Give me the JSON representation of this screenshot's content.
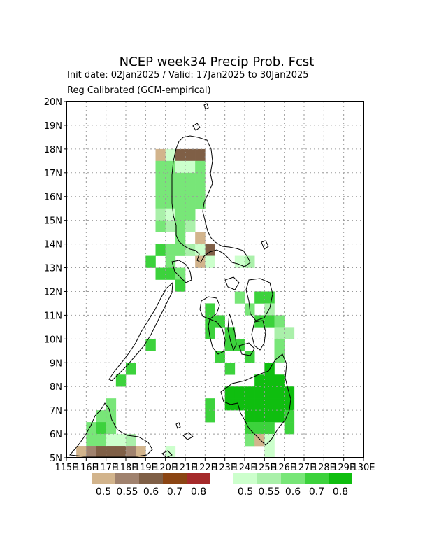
{
  "title": "NCEP week34 Precip Prob. Fcst",
  "subtitle_line1": "Init date: 02Jan2025 / Valid: 17Jan2025 to 30Jan2025",
  "subtitle_line2": "Reg Calibrated (GCM-empirical)",
  "map": {
    "lon_range": [
      115,
      130
    ],
    "lat_range": [
      5,
      20
    ],
    "lon_ticks": [
      "115E",
      "116E",
      "117E",
      "118E",
      "119E",
      "120E",
      "121E",
      "122E",
      "123E",
      "124E",
      "125E",
      "126E",
      "127E",
      "128E",
      "129E",
      "130E"
    ],
    "lat_ticks": [
      "5N",
      "6N",
      "7N",
      "8N",
      "9N",
      "10N",
      "11N",
      "12N",
      "13N",
      "14N",
      "15N",
      "16N",
      "17N",
      "18N",
      "19N",
      "20N"
    ],
    "grid_step_deg": 0.5,
    "grid_dotted": true
  },
  "legend": {
    "dry": {
      "labels": [
        "0.5",
        "0.55",
        "0.6",
        "0.7",
        "0.8"
      ],
      "colors": [
        "#d2b48c",
        "#a0826e",
        "#7f5f46",
        "#8b4513",
        "#a52a2a"
      ]
    },
    "wet": {
      "labels": [
        "0.5",
        "0.55",
        "0.6",
        "0.7",
        "0.8"
      ],
      "colors": [
        "#ccffcc",
        "#aaf0aa",
        "#78e678",
        "#3cd23c",
        "#0fbe0f"
      ]
    }
  },
  "prob_cells": [
    {
      "lon": 19.75,
      "lat": 17.75,
      "v": "d1"
    },
    {
      "lon": 20.25,
      "lat": 17.75,
      "v": "w1"
    },
    {
      "lon": 20.75,
      "lat": 17.75,
      "v": "d3"
    },
    {
      "lon": 21.25,
      "lat": 17.75,
      "v": "d3"
    },
    {
      "lon": 21.75,
      "lat": 17.75,
      "v": "d3"
    },
    {
      "lon": 19.75,
      "lat": 17.25,
      "v": "w3"
    },
    {
      "lon": 20.25,
      "lat": 17.25,
      "v": "w3"
    },
    {
      "lon": 20.75,
      "lat": 17.25,
      "v": "w1"
    },
    {
      "lon": 21.25,
      "lat": 17.25,
      "v": "w1"
    },
    {
      "lon": 21.75,
      "lat": 17.25,
      "v": "w3"
    },
    {
      "lon": 19.75,
      "lat": 16.75,
      "v": "w3"
    },
    {
      "lon": 20.25,
      "lat": 16.75,
      "v": "w3"
    },
    {
      "lon": 20.75,
      "lat": 16.75,
      "v": "w3"
    },
    {
      "lon": 21.25,
      "lat": 16.75,
      "v": "w3"
    },
    {
      "lon": 21.75,
      "lat": 16.75,
      "v": "w3"
    },
    {
      "lon": 19.75,
      "lat": 16.25,
      "v": "w3"
    },
    {
      "lon": 20.25,
      "lat": 16.25,
      "v": "w3"
    },
    {
      "lon": 20.75,
      "lat": 16.25,
      "v": "w3"
    },
    {
      "lon": 21.25,
      "lat": 16.25,
      "v": "w3"
    },
    {
      "lon": 21.75,
      "lat": 16.25,
      "v": "w3"
    },
    {
      "lon": 19.75,
      "lat": 15.75,
      "v": "w3"
    },
    {
      "lon": 20.25,
      "lat": 15.75,
      "v": "w3"
    },
    {
      "lon": 20.75,
      "lat": 15.75,
      "v": "w3"
    },
    {
      "lon": 21.25,
      "lat": 15.75,
      "v": "w3"
    },
    {
      "lon": 21.75,
      "lat": 15.75,
      "v": "w3"
    },
    {
      "lon": 19.75,
      "lat": 15.25,
      "v": "w2"
    },
    {
      "lon": 20.25,
      "lat": 15.25,
      "v": "w1"
    },
    {
      "lon": 20.75,
      "lat": 15.25,
      "v": "w3"
    },
    {
      "lon": 21.25,
      "lat": 15.25,
      "v": "w3"
    },
    {
      "lon": 19.75,
      "lat": 14.75,
      "v": "w3"
    },
    {
      "lon": 20.25,
      "lat": 14.75,
      "v": "w2"
    },
    {
      "lon": 20.75,
      "lat": 14.75,
      "v": "w3"
    },
    {
      "lon": 21.25,
      "lat": 14.75,
      "v": "w2"
    },
    {
      "lon": 20.75,
      "lat": 14.25,
      "v": "w3"
    },
    {
      "lon": 21.75,
      "lat": 14.25,
      "v": "d1"
    },
    {
      "lon": 19.75,
      "lat": 13.75,
      "v": "w4"
    },
    {
      "lon": 20.25,
      "lat": 13.75,
      "v": "w3"
    },
    {
      "lon": 20.75,
      "lat": 13.75,
      "v": "w3"
    },
    {
      "lon": 21.25,
      "lat": 13.75,
      "v": "w2"
    },
    {
      "lon": 22.25,
      "lat": 13.75,
      "v": "d3"
    },
    {
      "lon": 21.75,
      "lat": 13.75,
      "v": "w1"
    },
    {
      "lon": 19.25,
      "lat": 13.25,
      "v": "w4"
    },
    {
      "lon": 20.25,
      "lat": 13.25,
      "v": "w3"
    },
    {
      "lon": 21.75,
      "lat": 13.25,
      "v": "d1"
    },
    {
      "lon": 22.25,
      "lat": 13.25,
      "v": "w1"
    },
    {
      "lon": 23.75,
      "lat": 13.25,
      "v": "w1"
    },
    {
      "lon": 24.25,
      "lat": 13.25,
      "v": "w2"
    },
    {
      "lon": 19.75,
      "lat": 12.75,
      "v": "w4"
    },
    {
      "lon": 20.25,
      "lat": 12.75,
      "v": "w4"
    },
    {
      "lon": 20.75,
      "lat": 12.75,
      "v": "w3"
    },
    {
      "lon": 20.75,
      "lat": 12.25,
      "v": "w4"
    },
    {
      "lon": 23.75,
      "lat": 11.75,
      "v": "w3"
    },
    {
      "lon": 24.75,
      "lat": 11.75,
      "v": "w4"
    },
    {
      "lon": 25.25,
      "lat": 11.75,
      "v": "w4"
    },
    {
      "lon": 22.25,
      "lat": 11.25,
      "v": "w4"
    },
    {
      "lon": 24.25,
      "lat": 11.25,
      "v": "w3"
    },
    {
      "lon": 25.25,
      "lat": 11.25,
      "v": "w2"
    },
    {
      "lon": 22.25,
      "lat": 10.75,
      "v": "w4"
    },
    {
      "lon": 22.75,
      "lat": 10.75,
      "v": "w4"
    },
    {
      "lon": 24.75,
      "lat": 10.75,
      "v": "w4"
    },
    {
      "lon": 25.25,
      "lat": 10.75,
      "v": "w4"
    },
    {
      "lon": 25.75,
      "lat": 10.75,
      "v": "w3"
    },
    {
      "lon": 22.25,
      "lat": 10.25,
      "v": "w4"
    },
    {
      "lon": 23.25,
      "lat": 10.25,
      "v": "w4"
    },
    {
      "lon": 25.75,
      "lat": 10.25,
      "v": "w2"
    },
    {
      "lon": 26.25,
      "lat": 10.25,
      "v": "w2"
    },
    {
      "lon": 19.25,
      "lat": 9.75,
      "v": "w4"
    },
    {
      "lon": 23.25,
      "lat": 9.75,
      "v": "w4"
    },
    {
      "lon": 23.75,
      "lat": 9.75,
      "v": "w4"
    },
    {
      "lon": 25.75,
      "lat": 9.75,
      "v": "w3"
    },
    {
      "lon": 22.75,
      "lat": 9.25,
      "v": "w4"
    },
    {
      "lon": 24.25,
      "lat": 9.25,
      "v": "w4"
    },
    {
      "lon": 25.75,
      "lat": 9.25,
      "v": "w3"
    },
    {
      "lon": 18.25,
      "lat": 8.75,
      "v": "w4"
    },
    {
      "lon": 23.25,
      "lat": 8.75,
      "v": "w4"
    },
    {
      "lon": 25.25,
      "lat": 8.75,
      "v": "w5"
    },
    {
      "lon": 17.75,
      "lat": 8.25,
      "v": "w4"
    },
    {
      "lon": 24.75,
      "lat": 8.25,
      "v": "w5"
    },
    {
      "lon": 25.25,
      "lat": 8.25,
      "v": "w5"
    },
    {
      "lon": 25.75,
      "lat": 8.25,
      "v": "w5"
    },
    {
      "lon": 23.25,
      "lat": 7.75,
      "v": "w5"
    },
    {
      "lon": 23.75,
      "lat": 7.75,
      "v": "w5"
    },
    {
      "lon": 24.25,
      "lat": 7.75,
      "v": "w5"
    },
    {
      "lon": 24.75,
      "lat": 7.75,
      "v": "w5"
    },
    {
      "lon": 25.25,
      "lat": 7.75,
      "v": "w5"
    },
    {
      "lon": 25.75,
      "lat": 7.75,
      "v": "w5"
    },
    {
      "lon": 26.25,
      "lat": 7.75,
      "v": "w5"
    },
    {
      "lon": 22.25,
      "lat": 7.25,
      "v": "w4"
    },
    {
      "lon": 23.25,
      "lat": 7.25,
      "v": "w5"
    },
    {
      "lon": 23.75,
      "lat": 7.25,
      "v": "w5"
    },
    {
      "lon": 24.25,
      "lat": 7.25,
      "v": "w5"
    },
    {
      "lon": 24.75,
      "lat": 7.25,
      "v": "w5"
    },
    {
      "lon": 25.25,
      "lat": 7.25,
      "v": "w5"
    },
    {
      "lon": 25.75,
      "lat": 7.25,
      "v": "w5"
    },
    {
      "lon": 26.25,
      "lat": 7.25,
      "v": "w5"
    },
    {
      "lon": 17.25,
      "lat": 7.25,
      "v": "w3"
    },
    {
      "lon": 22.25,
      "lat": 6.75,
      "v": "w4"
    },
    {
      "lon": 24.25,
      "lat": 6.75,
      "v": "w5"
    },
    {
      "lon": 24.75,
      "lat": 6.75,
      "v": "w5"
    },
    {
      "lon": 25.25,
      "lat": 6.75,
      "v": "w5"
    },
    {
      "lon": 25.75,
      "lat": 6.75,
      "v": "w5"
    },
    {
      "lon": 26.25,
      "lat": 6.75,
      "v": "w4"
    },
    {
      "lon": 16.75,
      "lat": 6.75,
      "v": "w3"
    },
    {
      "lon": 17.25,
      "lat": 6.75,
      "v": "w3"
    },
    {
      "lon": 16.25,
      "lat": 6.25,
      "v": "w3"
    },
    {
      "lon": 16.75,
      "lat": 6.25,
      "v": "w4"
    },
    {
      "lon": 17.25,
      "lat": 6.25,
      "v": "w3"
    },
    {
      "lon": 24.25,
      "lat": 6.25,
      "v": "w4"
    },
    {
      "lon": 24.75,
      "lat": 6.25,
      "v": "w4"
    },
    {
      "lon": 25.25,
      "lat": 6.25,
      "v": "w4"
    },
    {
      "lon": 26.25,
      "lat": 6.25,
      "v": "w4"
    },
    {
      "lon": 16.25,
      "lat": 5.75,
      "v": "w3"
    },
    {
      "lon": 16.75,
      "lat": 5.75,
      "v": "w3"
    },
    {
      "lon": 17.25,
      "lat": 5.75,
      "v": "w1"
    },
    {
      "lon": 17.75,
      "lat": 5.75,
      "v": "w1"
    },
    {
      "lon": 18.25,
      "lat": 5.75,
      "v": "w2"
    },
    {
      "lon": 24.25,
      "lat": 5.75,
      "v": "w3"
    },
    {
      "lon": 24.75,
      "lat": 5.75,
      "v": "d1"
    },
    {
      "lon": 25.25,
      "lat": 5.75,
      "v": "w1"
    },
    {
      "lon": 15.75,
      "lat": 5.25,
      "v": "d1"
    },
    {
      "lon": 16.25,
      "lat": 5.25,
      "v": "d2"
    },
    {
      "lon": 16.75,
      "lat": 5.25,
      "v": "d3"
    },
    {
      "lon": 17.25,
      "lat": 5.25,
      "v": "d3"
    },
    {
      "lon": 17.75,
      "lat": 5.25,
      "v": "d3"
    },
    {
      "lon": 18.25,
      "lat": 5.25,
      "v": "d2"
    },
    {
      "lon": 18.75,
      "lat": 5.25,
      "v": "d1"
    },
    {
      "lon": 25.25,
      "lat": 5.25,
      "v": "w1"
    },
    {
      "lon": 20.25,
      "lat": 5.25,
      "v": "w1"
    }
  ]
}
